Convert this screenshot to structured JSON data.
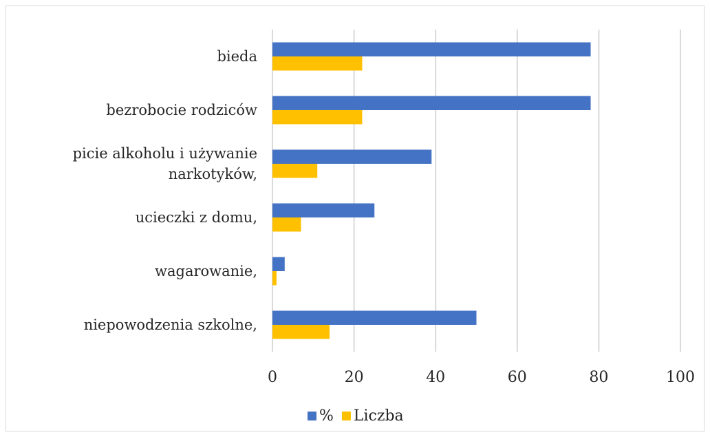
{
  "chart_data": {
    "type": "hbar",
    "categories": [
      "bieda",
      "bezrobocie rodziców",
      "picie alkoholu i używanie narkotyków,",
      "ucieczki z domu,",
      "wagarowanie,",
      "niepowodzenia szkolne,"
    ],
    "series": [
      {
        "name": "%",
        "color": "#4472c4",
        "values": [
          78,
          78,
          39,
          25,
          3,
          50
        ]
      },
      {
        "name": "Liczba",
        "color": "#ffc000",
        "values": [
          22,
          22,
          11,
          7,
          1,
          14
        ]
      }
    ],
    "xlim": [
      0,
      100
    ],
    "xticks": [
      0,
      20,
      40,
      60,
      80,
      100
    ],
    "grid": true,
    "legend": "bottom"
  }
}
